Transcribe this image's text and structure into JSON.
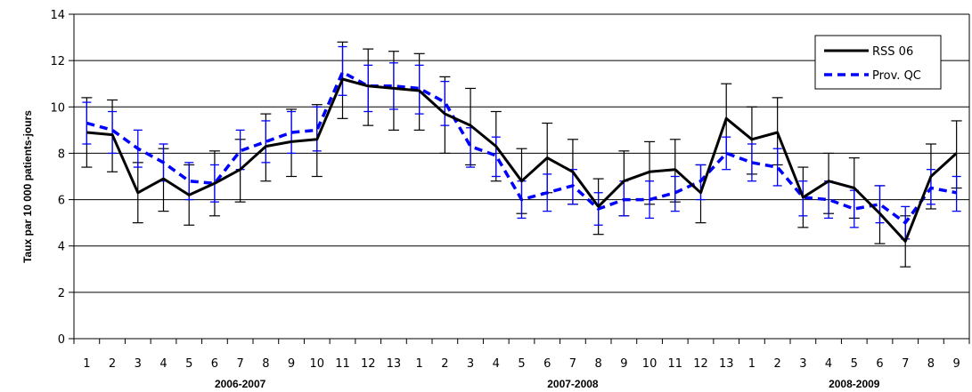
{
  "chart_data": {
    "type": "line",
    "title": "",
    "xlabel": "",
    "ylabel": "Taux par 10 000 patients-jours",
    "ylim": [
      0,
      14
    ],
    "yticks": [
      "0",
      "2",
      "4",
      "6",
      "8",
      "10",
      "12",
      "14"
    ],
    "grid": "horizontal",
    "legend_position": "top-right",
    "categories": [
      "1",
      "2",
      "3",
      "4",
      "5",
      "6",
      "7",
      "8",
      "9",
      "10",
      "11",
      "12",
      "13",
      "1",
      "2",
      "3",
      "4",
      "5",
      "6",
      "7",
      "8",
      "9",
      "10",
      "11",
      "12",
      "13",
      "1",
      "2",
      "3",
      "4",
      "5",
      "6",
      "7",
      "8",
      "9"
    ],
    "groups": [
      {
        "label": "2006-2007",
        "start": 0,
        "count": 13
      },
      {
        "label": "2007-2008",
        "start": 13,
        "count": 13
      },
      {
        "label": "2008-2009",
        "start": 26,
        "count": 9
      }
    ],
    "series": [
      {
        "name": "RSS 06",
        "color": "#000000",
        "style": "solid",
        "values": [
          8.9,
          8.8,
          6.3,
          6.9,
          6.2,
          6.7,
          7.3,
          8.3,
          8.5,
          8.6,
          11.2,
          10.9,
          10.8,
          10.7,
          9.7,
          9.2,
          8.3,
          6.8,
          7.8,
          7.2,
          5.7,
          6.8,
          7.2,
          7.3,
          6.3,
          9.5,
          8.6,
          8.9,
          6.1,
          6.8,
          6.5,
          5.4,
          4.2,
          7.0,
          8.0
        ],
        "err_low": [
          7.4,
          7.2,
          5.0,
          5.5,
          4.9,
          5.3,
          5.9,
          6.8,
          7.0,
          7.0,
          9.5,
          9.2,
          9.0,
          9.0,
          8.0,
          7.5,
          6.8,
          5.4,
          6.3,
          5.8,
          4.5,
          5.3,
          5.8,
          5.9,
          5.0,
          8.0,
          7.1,
          7.5,
          4.8,
          5.4,
          5.2,
          4.1,
          3.1,
          5.6,
          6.5
        ],
        "err_high": [
          10.4,
          10.3,
          7.6,
          8.2,
          7.5,
          8.1,
          8.6,
          9.7,
          9.9,
          10.1,
          12.8,
          12.5,
          12.4,
          12.3,
          11.3,
          10.8,
          9.8,
          8.2,
          9.3,
          8.6,
          6.9,
          8.1,
          8.5,
          8.6,
          7.5,
          11.0,
          10.0,
          10.4,
          7.4,
          8.0,
          7.8,
          6.6,
          5.3,
          8.4,
          9.4
        ]
      },
      {
        "name": "Prov. QC",
        "color": "#0000ff",
        "style": "dashed",
        "values": [
          9.3,
          9.0,
          8.2,
          7.6,
          6.8,
          6.7,
          8.1,
          8.5,
          8.9,
          9.0,
          11.5,
          10.9,
          10.9,
          10.8,
          10.2,
          8.3,
          7.9,
          6.0,
          6.3,
          6.6,
          5.6,
          6.0,
          6.0,
          6.3,
          6.8,
          8.0,
          7.6,
          7.4,
          6.1,
          6.0,
          5.6,
          5.8,
          5.0,
          6.5,
          6.3
        ],
        "err_low": [
          8.4,
          8.0,
          7.4,
          6.8,
          6.0,
          5.9,
          7.3,
          7.6,
          8.0,
          8.1,
          10.5,
          9.8,
          9.9,
          9.7,
          9.2,
          7.4,
          7.0,
          5.2,
          5.5,
          5.8,
          4.9,
          5.3,
          5.2,
          5.5,
          6.0,
          7.3,
          6.8,
          6.6,
          5.3,
          5.2,
          4.8,
          5.0,
          4.3,
          5.8,
          5.5
        ],
        "err_high": [
          10.2,
          9.8,
          9.0,
          8.4,
          7.6,
          7.5,
          9.0,
          9.4,
          9.8,
          10.0,
          12.6,
          11.8,
          11.9,
          11.8,
          11.1,
          9.1,
          8.7,
          6.8,
          7.1,
          7.3,
          6.3,
          6.8,
          6.8,
          7.0,
          7.5,
          8.7,
          8.4,
          8.2,
          6.8,
          6.8,
          6.4,
          6.6,
          5.7,
          7.3,
          7.0
        ]
      }
    ]
  }
}
